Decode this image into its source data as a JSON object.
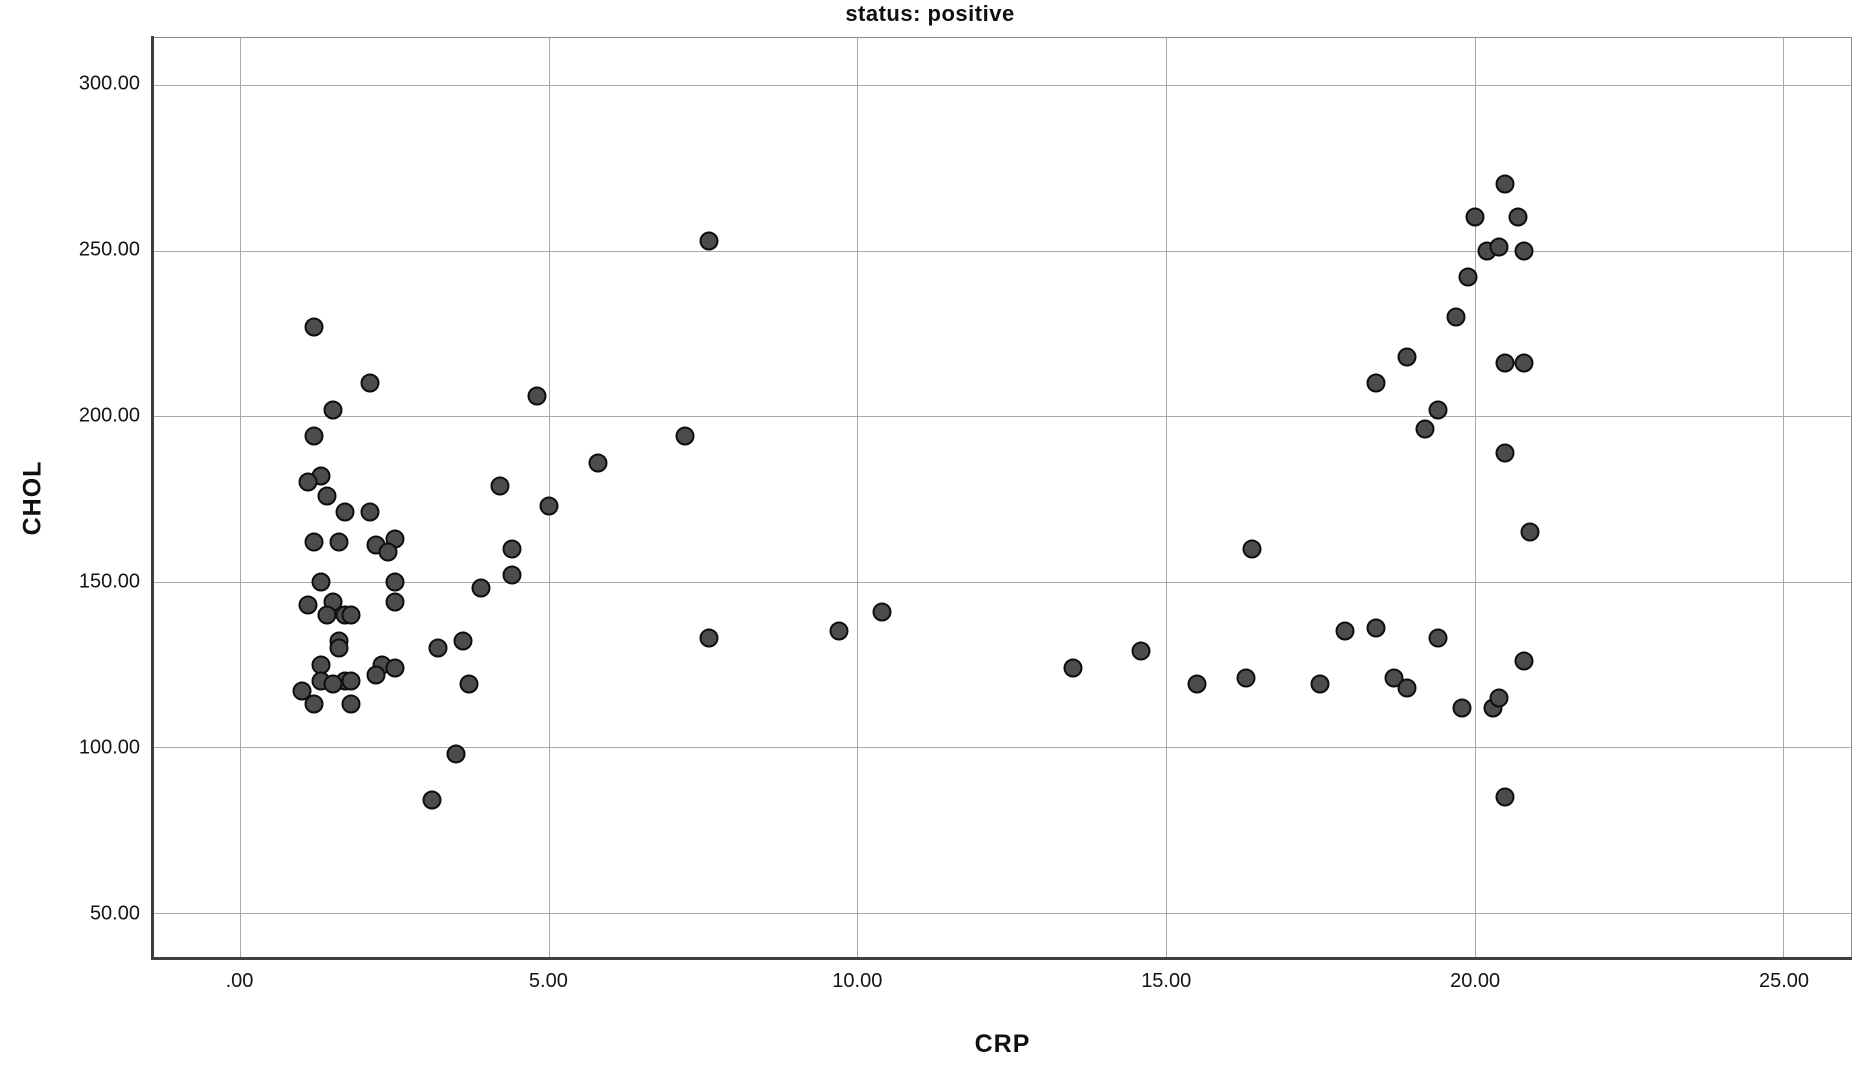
{
  "figure": {
    "title": "status: positive"
  },
  "chart_data": {
    "type": "scatter",
    "title": "status: positive",
    "xlabel": "CRP",
    "ylabel": "CHOL",
    "xlim": [
      -1.4,
      26.1
    ],
    "ylim": [
      36.4,
      314.2
    ],
    "grid": true,
    "legend": "none",
    "x_ticks": [
      {
        "label": ".00",
        "value": 0
      },
      {
        "label": "5.00",
        "value": 5
      },
      {
        "label": "10.00",
        "value": 10
      },
      {
        "label": "15.00",
        "value": 15
      },
      {
        "label": "20.00",
        "value": 20
      },
      {
        "label": "25.00",
        "value": 25
      }
    ],
    "y_ticks": [
      {
        "label": "50.00",
        "value": 50
      },
      {
        "label": "100.00",
        "value": 100
      },
      {
        "label": "150.00",
        "value": 150
      },
      {
        "label": "200.00",
        "value": 200
      },
      {
        "label": "250.00",
        "value": 250
      },
      {
        "label": "300.00",
        "value": 300
      }
    ],
    "series_name": "status: positive",
    "points": [
      [
        1.2,
        227
      ],
      [
        2.1,
        210
      ],
      [
        1.5,
        202
      ],
      [
        1.2,
        194
      ],
      [
        1.3,
        182
      ],
      [
        1.1,
        180
      ],
      [
        1.4,
        176
      ],
      [
        1.7,
        171
      ],
      [
        2.1,
        171
      ],
      [
        1.2,
        162
      ],
      [
        1.6,
        162
      ],
      [
        2.5,
        163
      ],
      [
        2.2,
        161
      ],
      [
        2.4,
        159
      ],
      [
        1.3,
        150
      ],
      [
        2.5,
        150
      ],
      [
        1.5,
        144
      ],
      [
        2.5,
        144
      ],
      [
        1.1,
        143
      ],
      [
        1.4,
        140
      ],
      [
        1.7,
        140
      ],
      [
        1.8,
        140
      ],
      [
        1.6,
        132
      ],
      [
        1.6,
        130
      ],
      [
        1.3,
        125
      ],
      [
        2.3,
        125
      ],
      [
        2.5,
        124
      ],
      [
        2.2,
        122
      ],
      [
        1.3,
        120
      ],
      [
        1.7,
        120
      ],
      [
        1.8,
        120
      ],
      [
        1.5,
        119
      ],
      [
        1.0,
        117
      ],
      [
        1.2,
        113
      ],
      [
        1.8,
        113
      ],
      [
        3.1,
        84
      ],
      [
        3.5,
        98
      ],
      [
        3.2,
        130
      ],
      [
        3.6,
        132
      ],
      [
        3.7,
        119
      ],
      [
        3.9,
        148
      ],
      [
        4.2,
        179
      ],
      [
        4.4,
        160
      ],
      [
        4.4,
        152
      ],
      [
        4.8,
        206
      ],
      [
        5.0,
        173
      ],
      [
        5.8,
        186
      ],
      [
        7.2,
        194
      ],
      [
        7.6,
        253
      ],
      [
        7.6,
        133
      ],
      [
        9.7,
        135
      ],
      [
        10.4,
        141
      ],
      [
        13.5,
        124
      ],
      [
        14.6,
        129
      ],
      [
        15.5,
        119
      ],
      [
        16.3,
        121
      ],
      [
        16.4,
        160
      ],
      [
        17.5,
        119
      ],
      [
        17.9,
        135
      ],
      [
        18.4,
        136
      ],
      [
        18.4,
        210
      ],
      [
        18.7,
        121
      ],
      [
        18.9,
        118
      ],
      [
        18.9,
        218
      ],
      [
        19.2,
        196
      ],
      [
        19.4,
        202
      ],
      [
        19.4,
        133
      ],
      [
        19.7,
        230
      ],
      [
        19.8,
        112
      ],
      [
        19.9,
        242
      ],
      [
        20.0,
        260
      ],
      [
        20.2,
        250
      ],
      [
        20.3,
        112
      ],
      [
        20.4,
        251
      ],
      [
        20.4,
        115
      ],
      [
        20.5,
        270
      ],
      [
        20.5,
        216
      ],
      [
        20.5,
        189
      ],
      [
        20.5,
        85
      ],
      [
        20.7,
        260
      ],
      [
        20.8,
        250
      ],
      [
        20.8,
        216
      ],
      [
        20.8,
        126
      ],
      [
        20.9,
        165
      ]
    ],
    "style": {
      "marker_fill": "#4c4c4c",
      "marker_edge": "#0e0e0e",
      "marker_edge_width": 2,
      "gridline_color": "#a9a9a9",
      "spine_color": "#3f3f3f",
      "frame_color": "#8c8c8c",
      "background": "#ffffff",
      "text_color": "#101010"
    }
  }
}
